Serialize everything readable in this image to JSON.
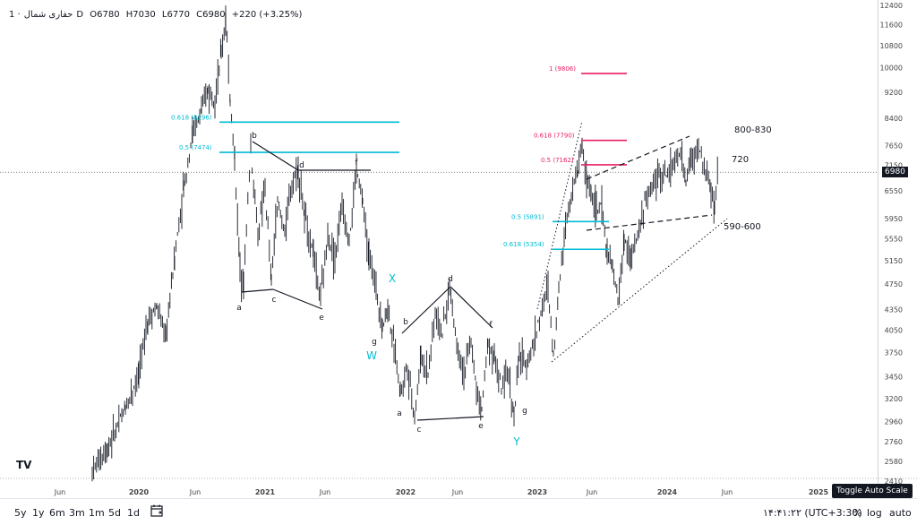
{
  "legend": {
    "symbol": "حفاری شمال",
    "timeframe": "1D",
    "open": "O6780",
    "high": "H7030",
    "low": "L6770",
    "close": "C6980",
    "change": "+220 (+3.25%)"
  },
  "chart_data": {
    "type": "candlestick",
    "x_axis": {
      "ticks": [
        "Jun",
        "2020",
        "Jun",
        "2021",
        "Jun",
        "2022",
        "Jun",
        "2023",
        "Jun",
        "2024",
        "Jun",
        "2025"
      ]
    },
    "y_axis": {
      "ticks": [
        "12400",
        "11600",
        "10800",
        "10000",
        "9200",
        "8400",
        "7650",
        "7150",
        "6550",
        "5950",
        "5550",
        "5150",
        "4750",
        "4350",
        "4050",
        "3750",
        "3450",
        "3200",
        "2960",
        "2760",
        "2580",
        "2410"
      ],
      "scale": "log"
    },
    "last_price": "6980",
    "fib_levels": [
      {
        "label": "0.618 (8296)",
        "value": 8296,
        "color": "#00bcd4"
      },
      {
        "label": "0.5 (7474)",
        "value": 7474,
        "color": "#00bcd4"
      },
      {
        "label": "1 (9806)",
        "value": 9806,
        "color": "#e91e63"
      },
      {
        "label": "0.618 (7790)",
        "value": 7790,
        "color": "#e91e63"
      },
      {
        "label": "0.5 (7162)",
        "value": 7162,
        "color": "#e91e63"
      },
      {
        "label": "0.5 (5891)",
        "value": 5891,
        "color": "#00bcd4"
      },
      {
        "label": "0.618 (5354)",
        "value": 5354,
        "color": "#00bcd4"
      }
    ],
    "annotations": {
      "wave_labels": [
        "a",
        "b",
        "c",
        "d",
        "e",
        "f",
        "g",
        "X",
        "W",
        "a",
        "b",
        "c",
        "d",
        "e",
        "f",
        "g",
        "Y"
      ],
      "targets": [
        "800-830",
        "720",
        "590-600"
      ]
    }
  },
  "bottom_bar": {
    "ranges": [
      "5y",
      "1y",
      "6m",
      "3m",
      "1m",
      "5d",
      "1d"
    ],
    "clock": "۱۴:۴۱:۲۲ (UTC+3:30)",
    "options": [
      "%",
      "log",
      "auto"
    ],
    "tooltip": "Toggle Auto Scale"
  },
  "colors": {
    "candle": "#131722",
    "cyan": "#00bcd4",
    "pink": "#e91e63",
    "dark": "#131722"
  }
}
